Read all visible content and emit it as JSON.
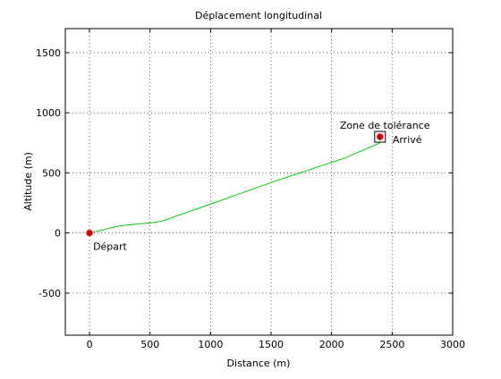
{
  "chart_data": {
    "type": "line",
    "title": "Déplacement longitudinal",
    "xlabel": "Distance (m)",
    "ylabel": "Altitude (m)",
    "xlim": [
      -200,
      3000
    ],
    "ylim": [
      -850,
      1700
    ],
    "xticks": [
      0,
      500,
      1000,
      1500,
      2000,
      2500,
      3000
    ],
    "yticks": [
      -500,
      0,
      500,
      1000,
      1500
    ],
    "grid": true,
    "grid_style": "dotted",
    "series": [
      {
        "color": "#00cc00",
        "x": [
          0,
          250,
          550,
          600,
          1000,
          1500,
          1800,
          2100,
          2400
        ],
        "y": [
          0,
          60,
          90,
          100,
          240,
          420,
          520,
          620,
          750
        ]
      }
    ],
    "markers": [
      {
        "label": "Départ",
        "x": 0,
        "y": 0,
        "color": "#cc0000"
      },
      {
        "label": "Arrivé",
        "x": 2400,
        "y": 800,
        "color": "#cc0000"
      }
    ],
    "annotations": [
      {
        "text": "Zone de tolérance",
        "x": 2400,
        "y": 800,
        "shape": "square"
      }
    ]
  }
}
